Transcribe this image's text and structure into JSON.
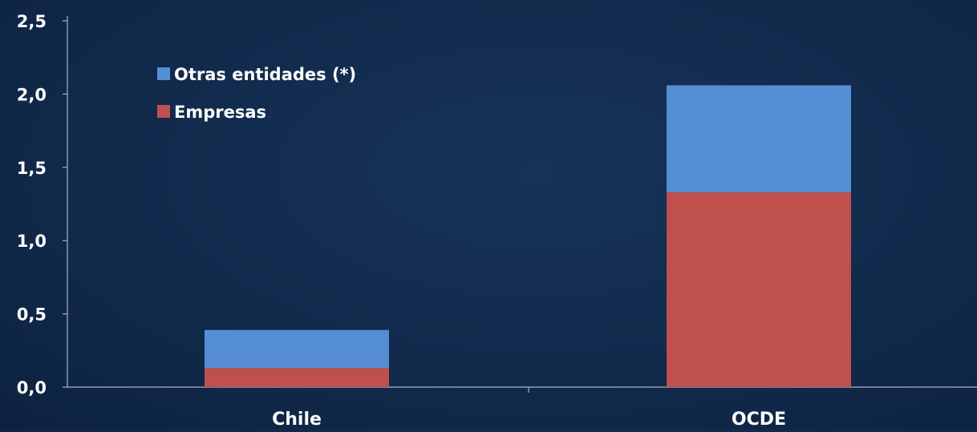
{
  "chart_data": {
    "type": "bar",
    "stacked": true,
    "categories": [
      "Chile",
      "OCDE"
    ],
    "series": [
      {
        "name": "Empresas",
        "values": [
          0.13,
          1.33
        ],
        "color": "#c0504d"
      },
      {
        "name": "Otras entidades (*)",
        "values": [
          0.26,
          0.73
        ],
        "color": "#558ed5"
      }
    ],
    "legend_order": [
      "Otras entidades (*)",
      "Empresas"
    ],
    "legend_position": "top-left",
    "y_ticks": [
      "0,0",
      "0,5",
      "1,0",
      "1,5",
      "2,0",
      "2,5"
    ],
    "ylim": [
      0,
      2.5
    ],
    "grid": false,
    "axis_color": "#a6b4c6",
    "background": "#112a4c"
  }
}
